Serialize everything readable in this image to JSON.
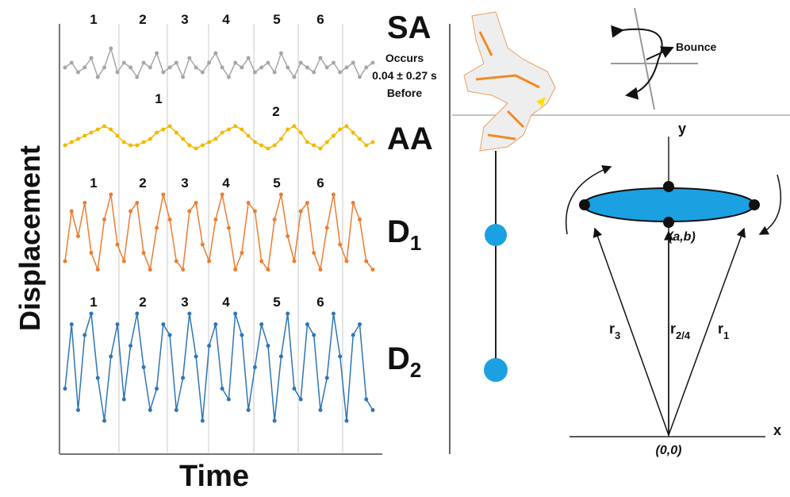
{
  "chart_data": {
    "type": "line",
    "xlabel": "Time",
    "ylabel": "Displacement",
    "xlim": [
      0,
      400
    ],
    "grid_x": [
      75,
      136,
      188,
      245,
      301,
      357
    ],
    "ylim": [
      0,
      10
    ],
    "series": [
      {
        "name": "SA",
        "color": "#a6a6a6",
        "cycle_labels": [
          1,
          2,
          3,
          4,
          5,
          6
        ],
        "note": [
          "Occurs",
          "0.04 ± 0.27 s",
          "Before"
        ],
        "values": [
          5,
          6,
          4,
          5,
          7,
          3,
          5,
          9,
          4,
          6,
          5,
          3,
          6,
          5,
          8,
          4,
          5,
          6,
          3,
          7,
          5,
          4,
          6,
          8,
          5,
          3,
          6,
          5,
          7,
          4,
          5,
          6,
          4,
          8,
          5,
          3,
          6,
          5,
          4,
          7,
          5,
          6,
          4,
          5,
          6,
          3,
          5,
          6
        ]
      },
      {
        "name": "AA",
        "color": "#f2b800",
        "cycle_labels": [
          1,
          2
        ],
        "values": [
          3,
          4,
          5,
          6,
          7,
          8,
          9,
          8,
          6,
          4,
          3,
          3,
          4,
          5,
          7,
          8,
          9,
          7,
          5,
          3,
          2,
          3,
          4,
          5,
          7,
          8,
          9,
          8,
          6,
          4,
          3,
          2,
          3,
          5,
          8,
          9,
          7,
          4,
          3,
          2,
          4,
          6,
          8,
          9,
          7,
          5,
          3,
          4
        ]
      },
      {
        "name": "D",
        "subscript": "1",
        "color": "#ed7d31",
        "cycle_labels": [
          1,
          2,
          3,
          4,
          5,
          6
        ],
        "values": [
          2,
          8,
          5,
          9,
          3,
          1,
          7,
          10,
          4,
          2,
          8,
          9,
          3,
          1,
          6,
          10,
          7,
          2,
          1,
          8,
          9,
          4,
          2,
          7,
          10,
          6,
          1,
          3,
          9,
          8,
          2,
          1,
          7,
          10,
          5,
          2,
          8,
          9,
          3,
          1,
          6,
          10,
          4,
          2,
          9,
          7,
          2,
          1
        ]
      },
      {
        "name": "D",
        "subscript": "2",
        "color": "#2e75b6",
        "cycle_labels": [
          1,
          2,
          3,
          4,
          5,
          6
        ],
        "values": [
          3,
          9,
          1,
          8,
          10,
          4,
          0,
          6,
          9,
          2,
          7,
          10,
          5,
          1,
          3,
          9,
          8,
          1,
          4,
          10,
          6,
          0,
          7,
          9,
          3,
          2,
          10,
          8,
          1,
          5,
          9,
          7,
          0,
          6,
          10,
          3,
          2,
          9,
          8,
          1,
          4,
          10,
          6,
          0,
          8,
          9,
          2,
          1
        ]
      }
    ]
  },
  "diagram": {
    "bounce": "Bounce",
    "y_axis": "y",
    "x_axis": "x",
    "center": "(a,b)",
    "origin": "(0,0)",
    "vectors": [
      {
        "name": "r",
        "subscript": "3"
      },
      {
        "name": "r",
        "subscript": "2/4"
      },
      {
        "name": "r",
        "subscript": "1"
      }
    ]
  }
}
